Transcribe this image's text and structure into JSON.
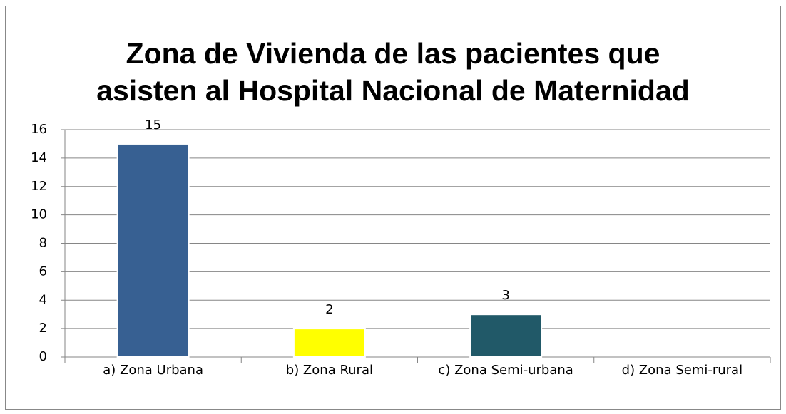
{
  "chart_data": {
    "type": "bar",
    "title": [
      "Zona de Vivienda de las pacientes que",
      "asisten al Hospital Nacional de Maternidad"
    ],
    "categories": [
      "a) Zona Urbana",
      "b) Zona Rural",
      "c) Zona Semi-urbana",
      "d) Zona Semi-rural"
    ],
    "values": [
      15,
      2,
      3,
      null
    ],
    "colors": [
      "#376092",
      "#ffff00",
      "#215968",
      null
    ],
    "ylim": [
      0,
      16
    ],
    "yticks": [
      0,
      2,
      4,
      6,
      8,
      10,
      12,
      14,
      16
    ],
    "grid": true
  }
}
